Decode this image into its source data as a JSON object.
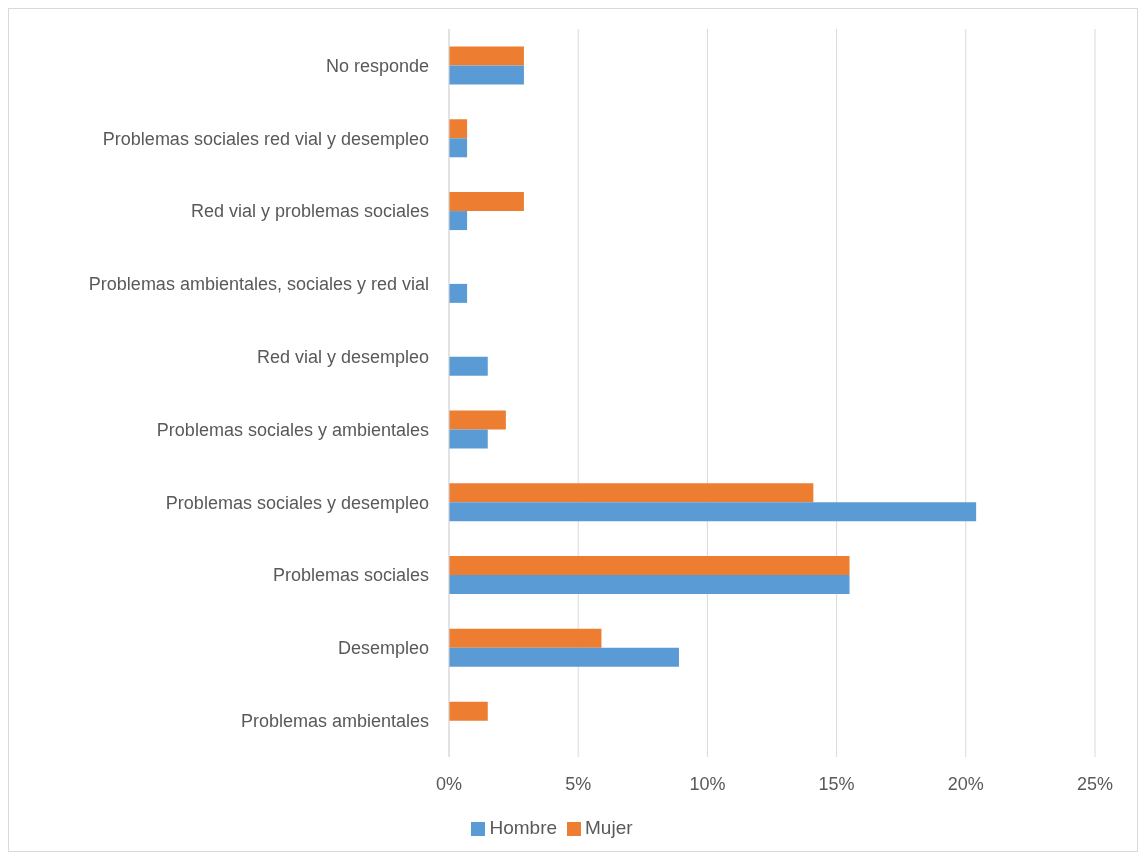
{
  "chart_data": {
    "type": "bar",
    "orientation": "horizontal",
    "categories": [
      "No responde",
      "Problemas sociales red vial y desempleo",
      "Red vial y problemas sociales",
      "Problemas ambientales, sociales y red vial",
      "Red vial y desempleo",
      "Problemas sociales y ambientales",
      "Problemas sociales y desempleo",
      "Problemas sociales",
      "Desempleo",
      "Problemas ambientales"
    ],
    "series": [
      {
        "name": "Mujer",
        "color": "#ed7d31",
        "values": [
          2.9,
          0.7,
          2.9,
          null,
          null,
          2.2,
          14.1,
          15.5,
          5.9,
          1.5
        ]
      },
      {
        "name": "Hombre",
        "color": "#5b9bd5",
        "values": [
          2.9,
          0.7,
          0.7,
          0.7,
          1.5,
          1.5,
          20.4,
          15.5,
          8.9,
          null
        ]
      }
    ],
    "xlim": [
      0,
      25
    ],
    "xticks": [
      {
        "value": 0,
        "label": "0%"
      },
      {
        "value": 5,
        "label": "5%"
      },
      {
        "value": 10,
        "label": "10%"
      },
      {
        "value": 15,
        "label": "15%"
      },
      {
        "value": 20,
        "label": "20%"
      },
      {
        "value": 25,
        "label": "25%"
      }
    ],
    "grid": "x",
    "legend": "bottom"
  }
}
